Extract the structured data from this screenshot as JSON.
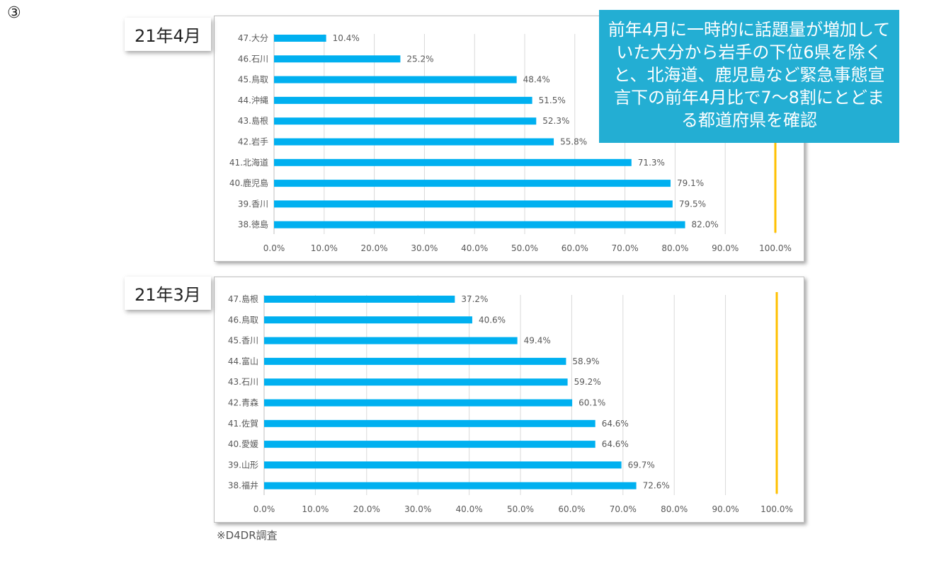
{
  "slide_number": "③",
  "callout_text": "前年4月に一時的に話題量が増加していた大分から岩手の下位6県を除くと、北海道、鹿児島など緊急事態宣言下の前年4月比で7〜8割にとどまる都道府県を確認",
  "source_note": "※D4DR調査",
  "colors": {
    "bar": "#00b0f0",
    "reference_line": "#ffc000",
    "gridline": "#d9d9d9",
    "callout_bg": "#23aed3"
  },
  "chart_data": [
    {
      "type": "bar",
      "orientation": "horizontal",
      "period_label": "21年4月",
      "categories": [
        "47.大分",
        "46.石川",
        "45.鳥取",
        "44.沖縄",
        "43.島根",
        "42.岩手",
        "41.北海道",
        "40.鹿児島",
        "39.香川",
        "38.徳島"
      ],
      "values": [
        10.4,
        25.2,
        48.4,
        51.5,
        52.3,
        55.8,
        71.3,
        79.1,
        79.5,
        82.0
      ],
      "data_labels": [
        "10.4%",
        "25.2%",
        "48.4%",
        "51.5%",
        "52.3%",
        "55.8%",
        "71.3%",
        "79.1%",
        "79.5%",
        "82.0%"
      ],
      "xlim": [
        0,
        100
      ],
      "x_ticks": [
        "0.0%",
        "10.0%",
        "20.0%",
        "30.0%",
        "40.0%",
        "50.0%",
        "60.0%",
        "70.0%",
        "80.0%",
        "90.0%",
        "100.0%"
      ],
      "reference_line": 100,
      "grid": true
    },
    {
      "type": "bar",
      "orientation": "horizontal",
      "period_label": "21年3月",
      "categories": [
        "47.島根",
        "46.鳥取",
        "45.香川",
        "44.富山",
        "43.石川",
        "42.青森",
        "41.佐賀",
        "40.愛媛",
        "39.山形",
        "38.福井"
      ],
      "values": [
        37.2,
        40.6,
        49.4,
        58.9,
        59.2,
        60.1,
        64.6,
        64.6,
        69.7,
        72.6
      ],
      "data_labels": [
        "37.2%",
        "40.6%",
        "49.4%",
        "58.9%",
        "59.2%",
        "60.1%",
        "64.6%",
        "64.6%",
        "69.7%",
        "72.6%"
      ],
      "xlim": [
        0,
        100
      ],
      "x_ticks": [
        "0.0%",
        "10.0%",
        "20.0%",
        "30.0%",
        "40.0%",
        "50.0%",
        "60.0%",
        "70.0%",
        "80.0%",
        "90.0%",
        "100.0%"
      ],
      "reference_line": 100,
      "grid": true
    }
  ]
}
